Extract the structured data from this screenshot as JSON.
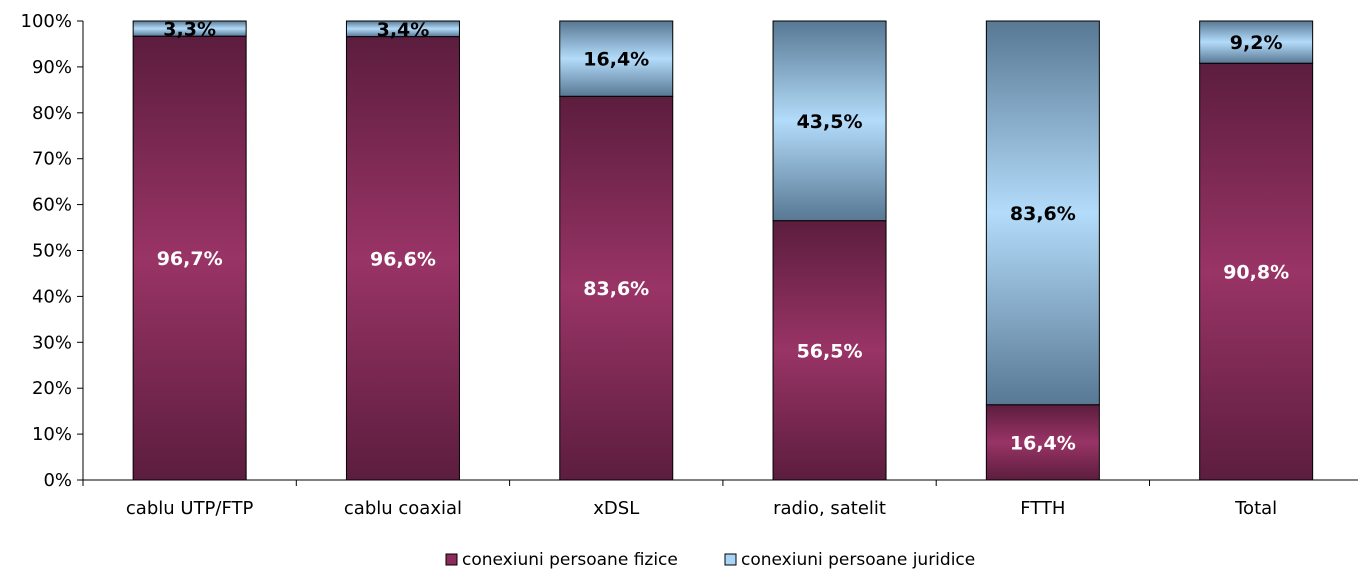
{
  "chart_data": {
    "type": "bar",
    "stacked": true,
    "percent_stacked": true,
    "categories": [
      "cablu UTP/FTP",
      "cablu coaxial",
      "xDSL",
      "radio, satelit",
      "FTTH",
      "Total"
    ],
    "series": [
      {
        "name": "conexiuni persoane fizice",
        "values": [
          96.7,
          96.6,
          83.6,
          56.5,
          16.4,
          90.8
        ],
        "labels": [
          "96,7%",
          "96,6%",
          "83,6%",
          "56,5%",
          "16,4%",
          "90,8%"
        ],
        "color": "#8b2d5c",
        "label_color": "#ffffff"
      },
      {
        "name": "conexiuni persoane juridice",
        "values": [
          3.3,
          3.4,
          16.4,
          43.5,
          83.6,
          9.2
        ],
        "labels": [
          "3,3%",
          "3,4%",
          "16,4%",
          "43,5%",
          "83,6%",
          "9,2%"
        ],
        "color": "#a9d4f5",
        "label_color": "#000000"
      }
    ],
    "y_ticks": [
      "0%",
      "10%",
      "20%",
      "30%",
      "40%",
      "50%",
      "60%",
      "70%",
      "80%",
      "90%",
      "100%"
    ],
    "ylim": [
      0,
      100
    ],
    "grid": false,
    "legend_position": "bottom",
    "title": "",
    "xlabel": "",
    "ylabel": ""
  }
}
